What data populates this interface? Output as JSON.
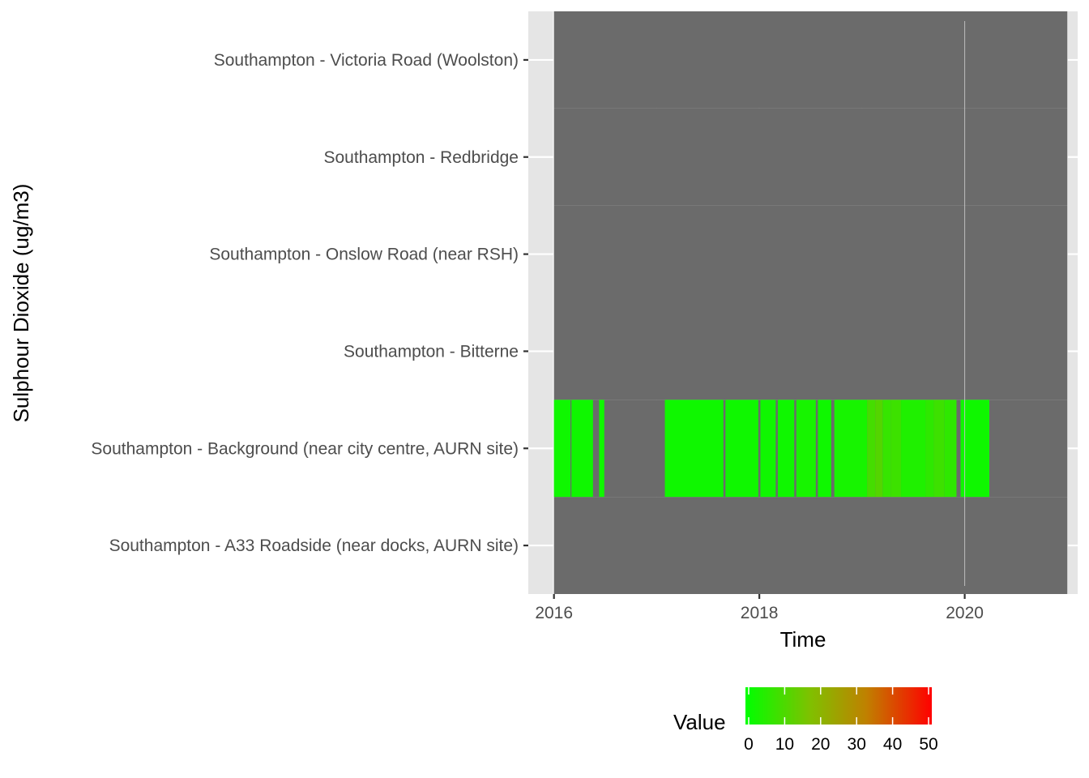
{
  "chart_data": {
    "type": "heatmap",
    "xlabel": "Time",
    "ylabel": "Sulphour Dioxide (ug/m3)",
    "x_ticks": [
      "2016",
      "2018",
      "2020"
    ],
    "x_tick_values": [
      2016,
      2018,
      2020
    ],
    "xlim": [
      2015.75,
      2021.1
    ],
    "data_extent": [
      2016.0,
      2021.0
    ],
    "categories": [
      "Southampton - A33 Roadside (near docks, AURN site)",
      "Southampton - Background (near city centre, AURN site)",
      "Southampton - Bitterne",
      "Southampton - Onslow Road (near RSH)",
      "Southampton - Redbridge",
      "Southampton - Victoria Road (Woolston)"
    ],
    "missing_color": "#6b6b6b",
    "panel_background": "#e5e5e5",
    "gridline_color": "#ffffff",
    "series": [
      {
        "site": "Southampton - Background (near city centre, AURN site)",
        "segments": [
          {
            "start": 2016.0,
            "end": 2016.16,
            "value": 2
          },
          {
            "start": 2016.17,
            "end": 2016.38,
            "value": 2
          },
          {
            "start": 2016.44,
            "end": 2016.49,
            "value": 2
          },
          {
            "start": 2017.08,
            "end": 2017.65,
            "value": 2
          },
          {
            "start": 2017.67,
            "end": 2017.99,
            "value": 2
          },
          {
            "start": 2018.01,
            "end": 2018.16,
            "value": 2
          },
          {
            "start": 2018.18,
            "end": 2018.34,
            "value": 2
          },
          {
            "start": 2018.36,
            "end": 2018.55,
            "value": 3
          },
          {
            "start": 2018.57,
            "end": 2018.7,
            "value": 2
          },
          {
            "start": 2018.73,
            "end": 2019.05,
            "value": 3
          },
          {
            "start": 2019.05,
            "end": 2019.13,
            "value": 9
          },
          {
            "start": 2019.13,
            "end": 2019.2,
            "value": 11
          },
          {
            "start": 2019.2,
            "end": 2019.28,
            "value": 7
          },
          {
            "start": 2019.28,
            "end": 2019.38,
            "value": 8
          },
          {
            "start": 2019.38,
            "end": 2019.62,
            "value": 4
          },
          {
            "start": 2019.62,
            "end": 2019.7,
            "value": 6
          },
          {
            "start": 2019.7,
            "end": 2019.8,
            "value": 8
          },
          {
            "start": 2019.8,
            "end": 2019.92,
            "value": 6
          },
          {
            "start": 2019.96,
            "end": 2020.24,
            "value": 2
          }
        ]
      }
    ],
    "legend": {
      "title": "Value",
      "ticks": [
        0,
        10,
        20,
        30,
        40,
        50
      ],
      "range": [
        0,
        50
      ],
      "colors": [
        "#00ff00",
        "#80c000",
        "#c08000",
        "#ff0000"
      ],
      "placement": "bottom"
    }
  }
}
